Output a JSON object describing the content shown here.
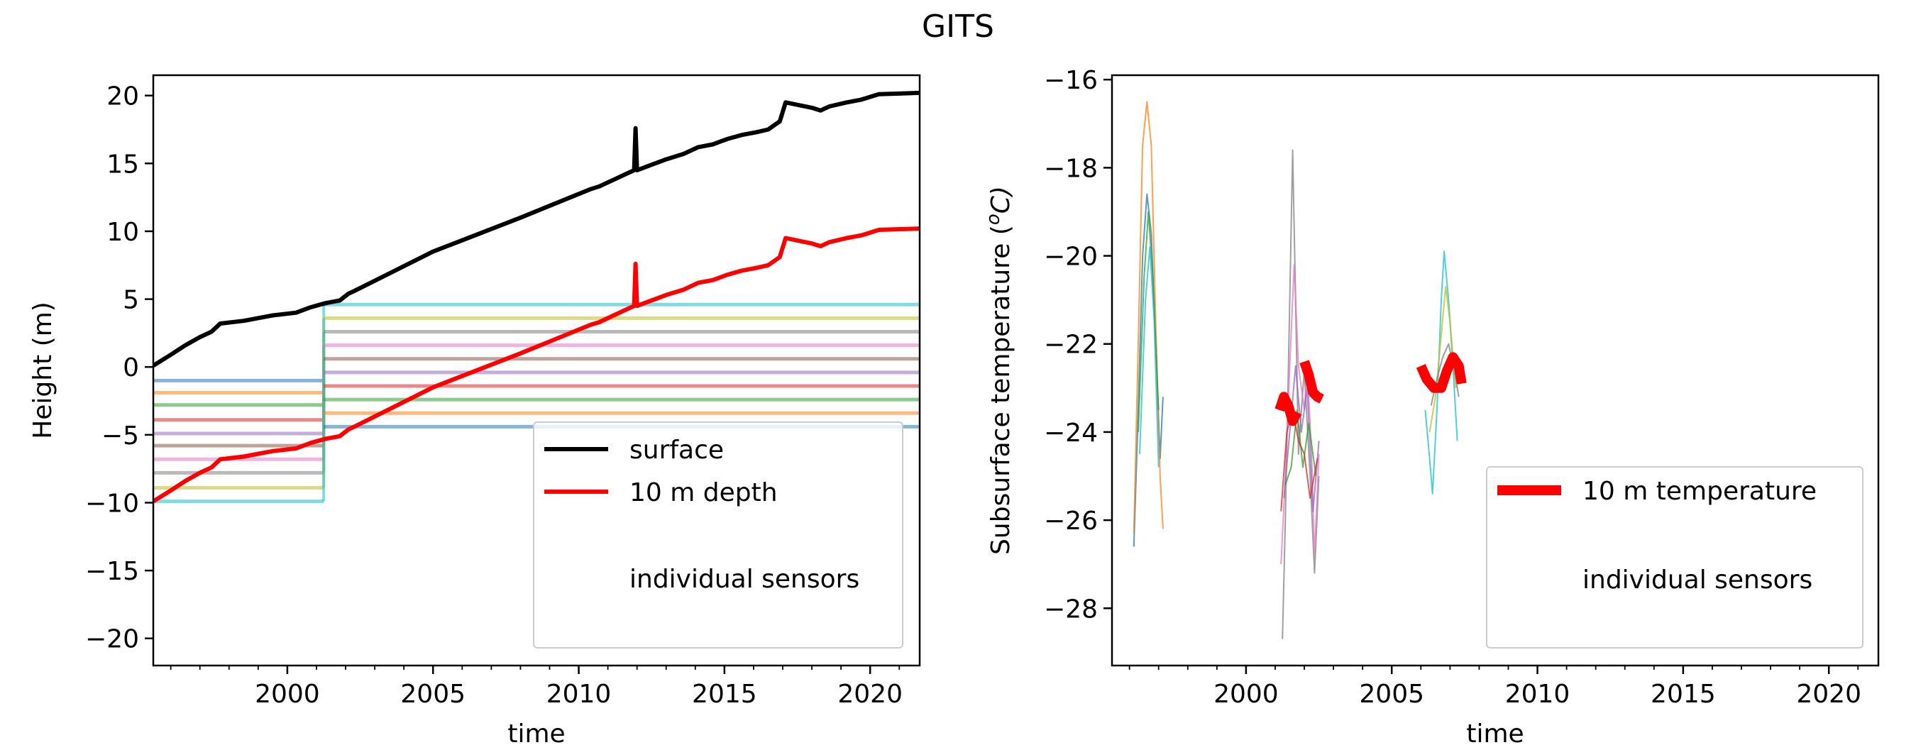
{
  "figure": {
    "suptitle": "GITS"
  },
  "chart_data": [
    {
      "type": "line",
      "xlabel": "time",
      "ylabel": "Height (m)",
      "xlim": [
        1995.4,
        2021.7
      ],
      "ylim": [
        -22,
        21.5
      ],
      "xticks": [
        2000,
        2005,
        2010,
        2015,
        2020
      ],
      "yticks": [
        -20,
        -15,
        -10,
        -5,
        0,
        5,
        10,
        15,
        20
      ],
      "grid": false,
      "legend_position": "lower-right",
      "legend": [
        "surface",
        "10 m depth",
        "individual sensors"
      ],
      "series": [
        {
          "name": "surface",
          "color": "#000000",
          "points": [
            [
              1995.4,
              0.1
            ],
            [
              1996.0,
              0.9
            ],
            [
              1996.5,
              1.6
            ],
            [
              1997.0,
              2.2
            ],
            [
              1997.4,
              2.6
            ],
            [
              1997.7,
              3.2
            ],
            [
              1998.5,
              3.4
            ],
            [
              1999.5,
              3.8
            ],
            [
              2000.3,
              4.0
            ],
            [
              2000.8,
              4.4
            ],
            [
              2001.3,
              4.7
            ],
            [
              2001.8,
              4.9
            ],
            [
              2002.1,
              5.4
            ],
            [
              2002.3,
              5.6
            ],
            [
              2005.0,
              8.5
            ],
            [
              2008.0,
              11.0
            ],
            [
              2010.4,
              13.1
            ],
            [
              2010.7,
              13.3
            ],
            [
              2011.2,
              13.8
            ],
            [
              2011.6,
              14.2
            ],
            [
              2011.9,
              14.5
            ],
            [
              2011.95,
              17.6
            ],
            [
              2012.0,
              14.5
            ],
            [
              2012.5,
              14.9
            ],
            [
              2013.0,
              15.3
            ],
            [
              2013.6,
              15.7
            ],
            [
              2014.1,
              16.2
            ],
            [
              2014.6,
              16.4
            ],
            [
              2015.1,
              16.8
            ],
            [
              2015.6,
              17.1
            ],
            [
              2016.1,
              17.3
            ],
            [
              2016.5,
              17.5
            ],
            [
              2016.9,
              18.1
            ],
            [
              2017.1,
              19.5
            ],
            [
              2018.0,
              19.1
            ],
            [
              2018.3,
              18.9
            ],
            [
              2018.6,
              19.2
            ],
            [
              2019.2,
              19.5
            ],
            [
              2019.7,
              19.7
            ],
            [
              2020.3,
              20.1
            ],
            [
              2021.7,
              20.2
            ]
          ]
        },
        {
          "name": "10 m depth",
          "color": "#ff0000",
          "points": [
            [
              1995.4,
              -9.9
            ],
            [
              1996.0,
              -9.1
            ],
            [
              1996.5,
              -8.4
            ],
            [
              1997.0,
              -7.8
            ],
            [
              1997.4,
              -7.4
            ],
            [
              1997.7,
              -6.8
            ],
            [
              1998.5,
              -6.6
            ],
            [
              1999.5,
              -6.2
            ],
            [
              2000.3,
              -6.0
            ],
            [
              2000.8,
              -5.6
            ],
            [
              2001.3,
              -5.3
            ],
            [
              2001.8,
              -5.1
            ],
            [
              2002.1,
              -4.6
            ],
            [
              2002.3,
              -4.4
            ],
            [
              2005.0,
              -1.5
            ],
            [
              2008.0,
              1.0
            ],
            [
              2010.4,
              3.1
            ],
            [
              2010.7,
              3.3
            ],
            [
              2011.2,
              3.8
            ],
            [
              2011.6,
              4.2
            ],
            [
              2011.9,
              4.5
            ],
            [
              2011.95,
              7.6
            ],
            [
              2012.0,
              4.5
            ],
            [
              2012.5,
              4.9
            ],
            [
              2013.0,
              5.3
            ],
            [
              2013.6,
              5.7
            ],
            [
              2014.1,
              6.2
            ],
            [
              2014.6,
              6.4
            ],
            [
              2015.1,
              6.8
            ],
            [
              2015.6,
              7.1
            ],
            [
              2016.1,
              7.3
            ],
            [
              2016.5,
              7.5
            ],
            [
              2016.9,
              8.1
            ],
            [
              2017.1,
              9.5
            ],
            [
              2018.0,
              9.1
            ],
            [
              2018.3,
              8.9
            ],
            [
              2018.6,
              9.2
            ],
            [
              2019.2,
              9.5
            ],
            [
              2019.7,
              9.7
            ],
            [
              2020.3,
              10.1
            ],
            [
              2021.7,
              10.2
            ]
          ]
        }
      ],
      "sensor_lines": {
        "colors": [
          "#1f77b4",
          "#ff7f0e",
          "#2ca02c",
          "#d62728",
          "#9467bd",
          "#8c564b",
          "#e377c2",
          "#7f7f7f",
          "#bcbd22",
          "#17becf"
        ],
        "segment1_x": [
          1995.4,
          2001.25
        ],
        "segment1_y": [
          -1.0,
          -1.9,
          -2.8,
          -3.9,
          -4.9,
          -5.8,
          -6.8,
          -7.8,
          -8.9,
          -9.9
        ],
        "segment2_x": [
          2001.25,
          2021.7
        ],
        "segment2_y": [
          -4.4,
          -3.4,
          -2.4,
          -1.4,
          -0.4,
          0.6,
          1.6,
          2.6,
          3.6,
          4.6
        ]
      }
    },
    {
      "type": "line",
      "xlabel": "time",
      "ylabel": "Subsurface temperature (",
      "ylabel_sup": "o",
      "ylabel_suffix": "C)",
      "xlim": [
        1995.4,
        2021.7
      ],
      "ylim": [
        -29.3,
        -15.9
      ],
      "xticks": [
        2000,
        2005,
        2010,
        2015,
        2020
      ],
      "yticks": [
        -28,
        -26,
        -24,
        -22,
        -20,
        -18,
        -16
      ],
      "grid": false,
      "legend_position": "lower-right",
      "legend": [
        "10 m temperature",
        "individual sensors"
      ],
      "series": [
        {
          "name": "10 m temperature",
          "color": "#ff0000",
          "segments": [
            [
              [
                2001.15,
                -23.5
              ],
              [
                2001.3,
                -23.2
              ],
              [
                2001.45,
                -23.4
              ],
              [
                2001.6,
                -23.75
              ],
              [
                2001.75,
                -23.55
              ]
            ],
            [
              [
                2002.0,
                -22.4
              ],
              [
                2002.15,
                -22.7
              ],
              [
                2002.3,
                -23.1
              ],
              [
                2002.45,
                -23.2
              ],
              [
                2002.6,
                -23.25
              ]
            ],
            [
              [
                2006.0,
                -22.5
              ],
              [
                2006.2,
                -22.8
              ],
              [
                2006.45,
                -23.0
              ],
              [
                2006.7,
                -23.0
              ],
              [
                2006.9,
                -22.6
              ],
              [
                2007.1,
                -22.3
              ],
              [
                2007.3,
                -22.5
              ],
              [
                2007.4,
                -22.9
              ]
            ]
          ]
        }
      ],
      "sensor_traces": [
        {
          "color": "#1f77b4",
          "points": [
            [
              1996.15,
              -26.6
            ],
            [
              1996.3,
              -23.5
            ],
            [
              1996.45,
              -20.0
            ],
            [
              1996.6,
              -18.6
            ],
            [
              1996.75,
              -19.5
            ],
            [
              1996.9,
              -22.0
            ],
            [
              1997.05,
              -24.6
            ],
            [
              1997.15,
              -23.2
            ]
          ]
        },
        {
          "color": "#ff7f0e",
          "points": [
            [
              1996.15,
              -26.3
            ],
            [
              1996.3,
              -22.0
            ],
            [
              1996.45,
              -17.5
            ],
            [
              1996.6,
              -16.5
            ],
            [
              1996.75,
              -17.5
            ],
            [
              1996.9,
              -21.5
            ],
            [
              1997.05,
              -25.0
            ],
            [
              1997.15,
              -26.2
            ]
          ]
        },
        {
          "color": "#2ca02c",
          "points": [
            [
              1996.3,
              -24.0
            ],
            [
              1996.5,
              -20.5
            ],
            [
              1996.65,
              -19.0
            ],
            [
              1996.8,
              -20.5
            ],
            [
              1997.0,
              -23.5
            ]
          ]
        },
        {
          "color": "#17becf",
          "points": [
            [
              1996.35,
              -24.5
            ],
            [
              1996.55,
              -21.0
            ],
            [
              1996.7,
              -19.8
            ],
            [
              1996.85,
              -21.5
            ],
            [
              1997.0,
              -24.8
            ]
          ]
        },
        {
          "color": "#7f7f7f",
          "points": [
            [
              2001.25,
              -28.7
            ],
            [
              2001.35,
              -26.0
            ],
            [
              2001.5,
              -21.0
            ],
            [
              2001.6,
              -17.6
            ],
            [
              2001.7,
              -21.0
            ],
            [
              2001.8,
              -24.5
            ],
            [
              2001.9,
              -23.5
            ],
            [
              2002.0,
              -22.6
            ],
            [
              2002.2,
              -25.0
            ],
            [
              2002.35,
              -27.2
            ],
            [
              2002.5,
              -25.0
            ]
          ]
        },
        {
          "color": "#e377c2",
          "points": [
            [
              2001.2,
              -27.0
            ],
            [
              2001.35,
              -25.0
            ],
            [
              2001.5,
              -22.5
            ],
            [
              2001.65,
              -20.2
            ],
            [
              2001.8,
              -22.5
            ],
            [
              2002.0,
              -23.5
            ],
            [
              2002.1,
              -22.5
            ],
            [
              2002.25,
              -24.5
            ],
            [
              2002.35,
              -26.8
            ],
            [
              2002.5,
              -24.5
            ]
          ]
        },
        {
          "color": "#9467bd",
          "points": [
            [
              2001.3,
              -25.5
            ],
            [
              2001.5,
              -24.0
            ],
            [
              2001.7,
              -22.5
            ],
            [
              2001.9,
              -24.0
            ],
            [
              2002.1,
              -23.0
            ],
            [
              2002.3,
              -25.8
            ],
            [
              2002.5,
              -24.2
            ]
          ]
        },
        {
          "color": "#2ca02c",
          "points": [
            [
              2001.35,
              -25.2
            ],
            [
              2001.55,
              -24.8
            ],
            [
              2001.75,
              -23.5
            ],
            [
              2001.95,
              -24.8
            ],
            [
              2002.15,
              -23.8
            ],
            [
              2002.4,
              -25.0
            ]
          ]
        },
        {
          "color": "#d62728",
          "points": [
            [
              2001.2,
              -25.8
            ],
            [
              2001.4,
              -24.0
            ],
            [
              2001.6,
              -23.5
            ],
            [
              2001.8,
              -24.2
            ],
            [
              2002.0,
              -24.5
            ],
            [
              2002.2,
              -25.5
            ],
            [
              2002.45,
              -24.6
            ]
          ]
        },
        {
          "color": "#17becf",
          "points": [
            [
              2006.15,
              -23.5
            ],
            [
              2006.3,
              -24.6
            ],
            [
              2006.4,
              -25.4
            ],
            [
              2006.55,
              -23.5
            ],
            [
              2006.7,
              -21.0
            ],
            [
              2006.8,
              -19.9
            ],
            [
              2006.95,
              -21.0
            ],
            [
              2007.1,
              -22.5
            ],
            [
              2007.25,
              -24.2
            ]
          ]
        },
        {
          "color": "#bcbd22",
          "points": [
            [
              2006.3,
              -24.0
            ],
            [
              2006.5,
              -23.2
            ],
            [
              2006.7,
              -21.8
            ],
            [
              2006.85,
              -20.7
            ],
            [
              2007.0,
              -21.5
            ],
            [
              2007.2,
              -23.0
            ]
          ]
        },
        {
          "color": "#7f7f7f",
          "points": [
            [
              2006.35,
              -23.4
            ],
            [
              2006.55,
              -22.8
            ],
            [
              2006.75,
              -22.3
            ],
            [
              2006.95,
              -22.0
            ],
            [
              2007.15,
              -22.6
            ],
            [
              2007.3,
              -23.2
            ]
          ]
        }
      ]
    }
  ]
}
